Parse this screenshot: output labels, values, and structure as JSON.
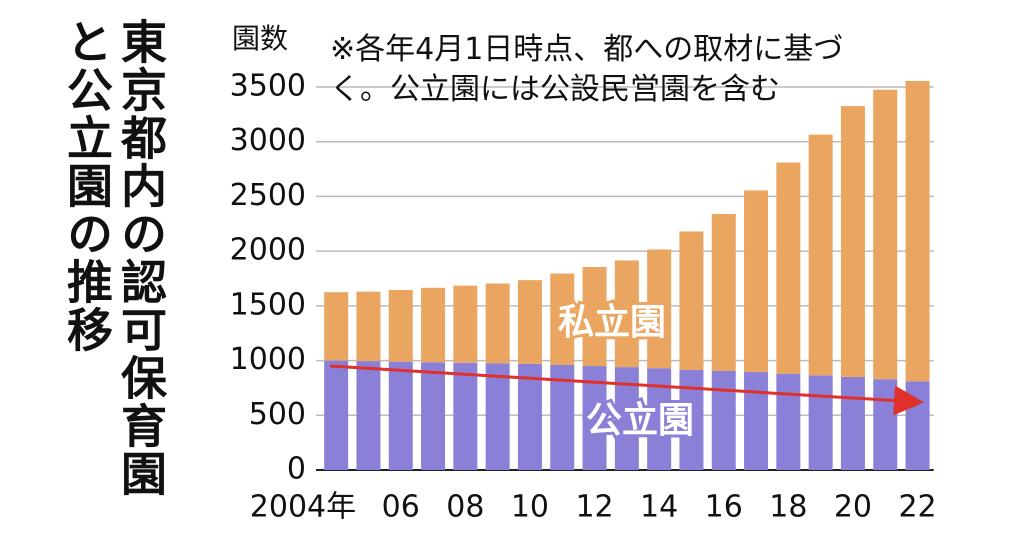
{
  "chart_data": {
    "type": "stacked_bar",
    "title": "東京都内の認可保育園と公立園の推移",
    "y_label": "園数",
    "note": "※各年4月1日時点、都への取材に基づく。公立園には公設民営園を含む",
    "categories": [
      "2004年",
      null,
      "06",
      null,
      "08",
      null,
      "10",
      null,
      "12",
      null,
      "14",
      null,
      "16",
      null,
      "18",
      null,
      "20",
      null,
      "22"
    ],
    "series": [
      {
        "name": "公立園",
        "color": "#8a80d8",
        "values": [
          1000,
          995,
          990,
          985,
          980,
          975,
          970,
          960,
          950,
          940,
          930,
          915,
          905,
          895,
          880,
          865,
          850,
          830,
          810
        ]
      },
      {
        "name": "私立園",
        "color": "#eaa660",
        "values": [
          625,
          635,
          655,
          680,
          705,
          730,
          765,
          835,
          905,
          975,
          1085,
          1265,
          1435,
          1660,
          1930,
          2200,
          2475,
          2645,
          2745
        ]
      }
    ],
    "ylim": [
      0,
      3500
    ],
    "yticks": [
      0,
      500,
      1000,
      1500,
      2000,
      2500,
      3000,
      3500
    ],
    "grid": true
  }
}
